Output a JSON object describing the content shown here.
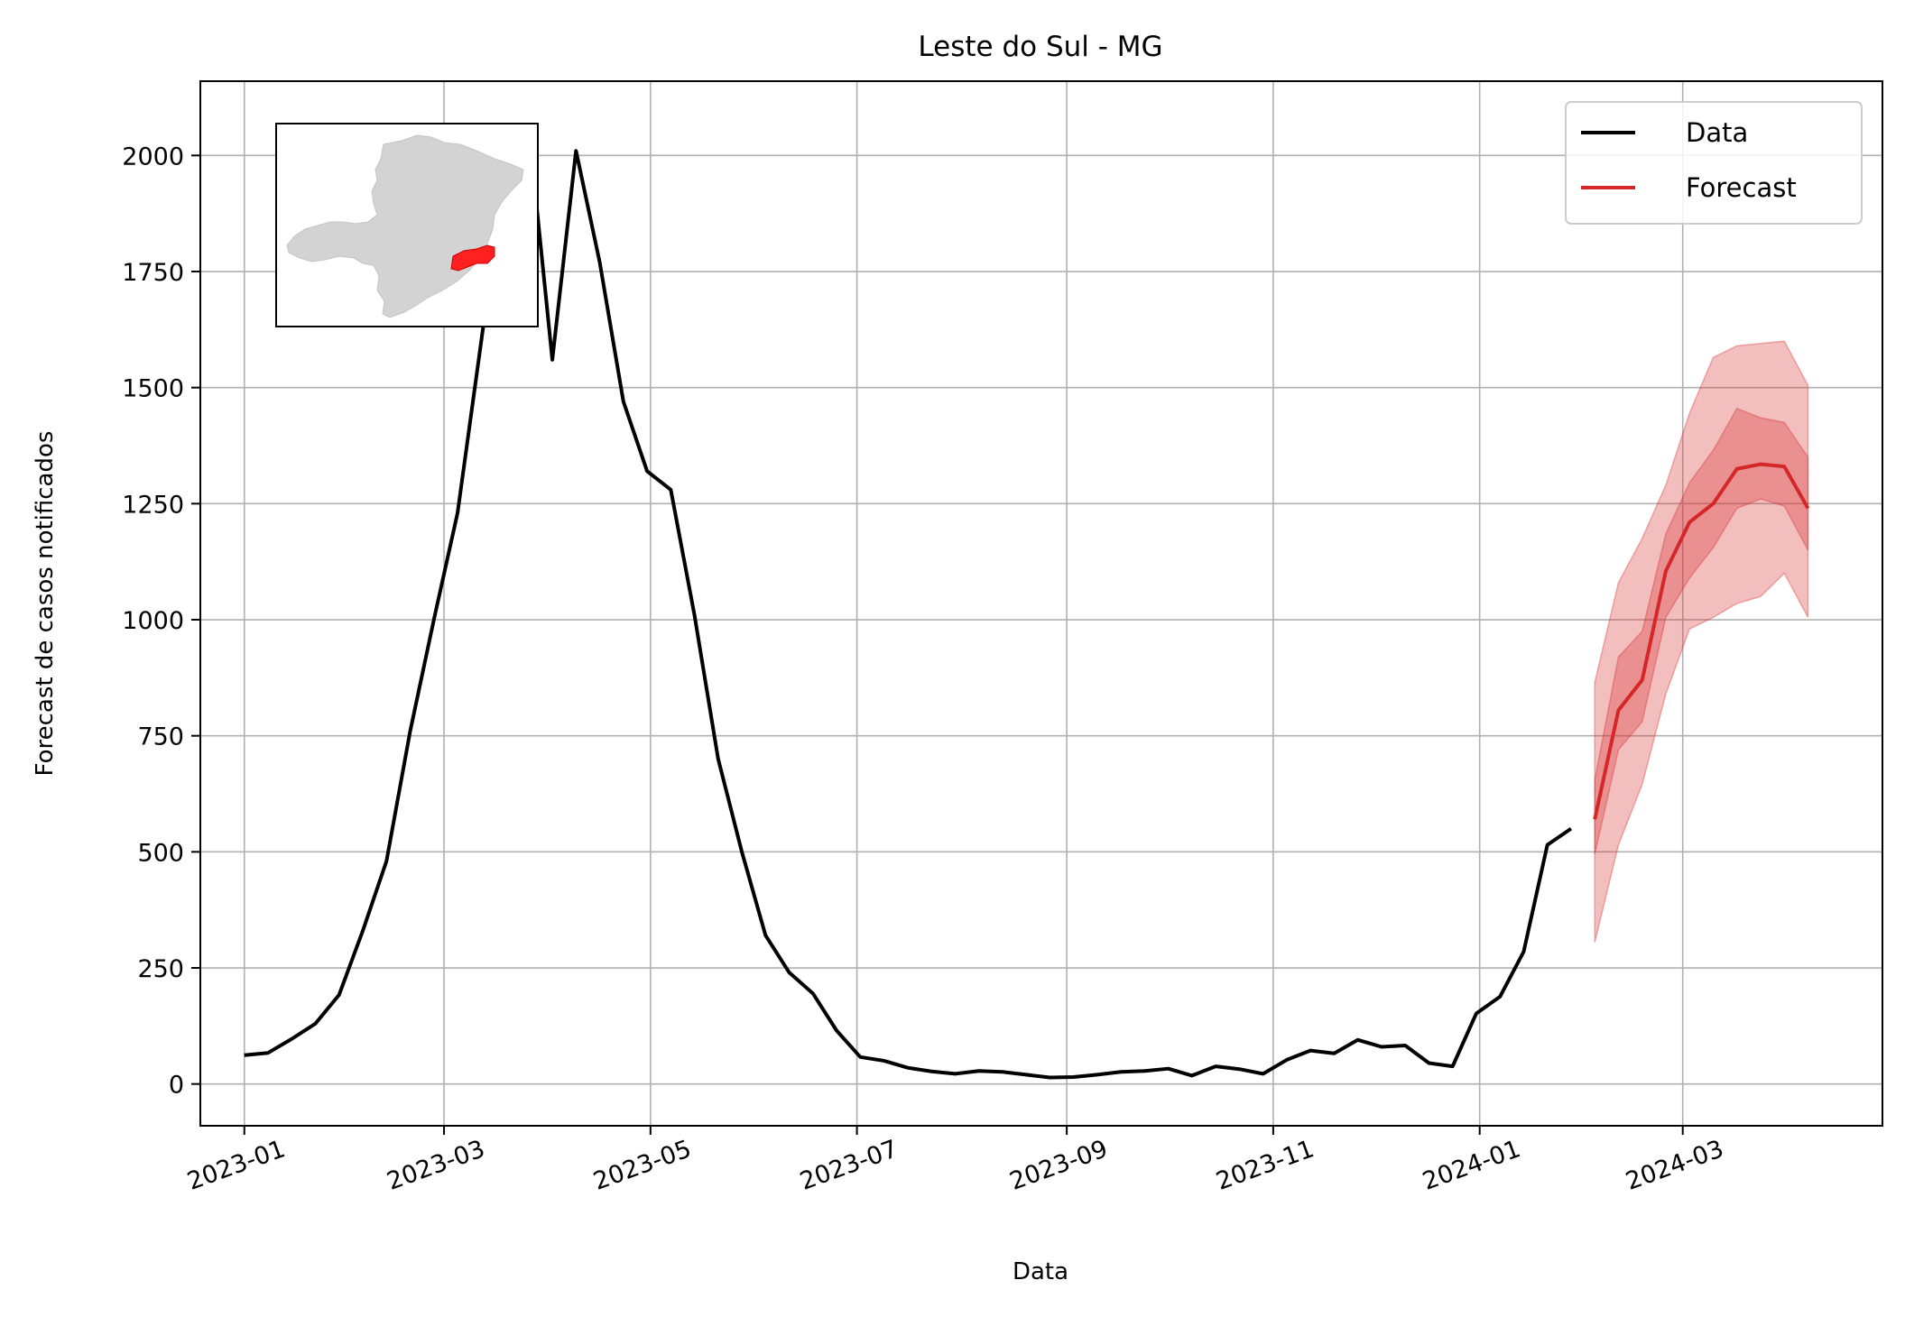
{
  "chart_data": {
    "type": "line",
    "title": "Leste do Sul - MG",
    "xlabel": "Data",
    "ylabel": "Forecast de casos notificados",
    "xlim": [
      "2022-12-19",
      "2024-04-29"
    ],
    "ylim": [
      -90,
      2160
    ],
    "x_ticks": [
      "2023-01-01",
      "2023-03-01",
      "2023-05-01",
      "2023-07-01",
      "2023-09-01",
      "2023-11-01",
      "2024-01-01",
      "2024-03-01"
    ],
    "x_tick_labels": [
      "2023-01",
      "2023-03",
      "2023-05",
      "2023-07",
      "2023-09",
      "2023-11",
      "2024-01",
      "2024-03"
    ],
    "y_ticks": [
      0,
      250,
      500,
      750,
      1000,
      1250,
      1500,
      1750,
      2000
    ],
    "y_tick_labels": [
      "0",
      "250",
      "500",
      "750",
      "1000",
      "1250",
      "1500",
      "1750",
      "2000"
    ],
    "grid": true,
    "legend": {
      "position": "top-right",
      "entries": [
        "Data",
        "Forecast"
      ]
    },
    "inset": {
      "description": "Mapa de MG com a região Leste do Sul em destaque"
    },
    "series": [
      {
        "name": "Data",
        "color": "#000000",
        "x": [
          "2023-01-01",
          "2023-01-08",
          "2023-01-15",
          "2023-01-22",
          "2023-01-29",
          "2023-02-05",
          "2023-02-12",
          "2023-02-19",
          "2023-02-26",
          "2023-03-05",
          "2023-03-12",
          "2023-03-19",
          "2023-03-26",
          "2023-04-02",
          "2023-04-09",
          "2023-04-16",
          "2023-04-23",
          "2023-04-30",
          "2023-05-07",
          "2023-05-14",
          "2023-05-21",
          "2023-05-28",
          "2023-06-04",
          "2023-06-11",
          "2023-06-18",
          "2023-06-25",
          "2023-07-02",
          "2023-07-09",
          "2023-07-16",
          "2023-07-23",
          "2023-07-30",
          "2023-08-06",
          "2023-08-13",
          "2023-08-20",
          "2023-08-27",
          "2023-09-03",
          "2023-09-10",
          "2023-09-17",
          "2023-09-24",
          "2023-10-01",
          "2023-10-08",
          "2023-10-15",
          "2023-10-22",
          "2023-10-29",
          "2023-11-05",
          "2023-11-12",
          "2023-11-19",
          "2023-11-26",
          "2023-12-03",
          "2023-12-10",
          "2023-12-17",
          "2023-12-24",
          "2023-12-31",
          "2024-01-07",
          "2024-01-14",
          "2024-01-21",
          "2024-01-28"
        ],
        "values": [
          62,
          67,
          97,
          130,
          192,
          330,
          480,
          760,
          1000,
          1230,
          1600,
          1980,
          2060,
          1560,
          2010,
          1770,
          1470,
          1320,
          1280,
          1010,
          700,
          500,
          320,
          240,
          195,
          115,
          58,
          50,
          35,
          27,
          22,
          28,
          26,
          20,
          14,
          15,
          20,
          26,
          28,
          33,
          18,
          38,
          32,
          22,
          52,
          72,
          66,
          95,
          80,
          83,
          45,
          38,
          152,
          188,
          285,
          515,
          550
        ]
      },
      {
        "name": "Forecast",
        "color": "#d62728",
        "x": [
          "2024-02-04",
          "2024-02-11",
          "2024-02-18",
          "2024-02-25",
          "2024-03-03",
          "2024-03-10",
          "2024-03-17",
          "2024-03-24",
          "2024-03-31",
          "2024-04-07"
        ],
        "values": [
          570,
          805,
          870,
          1105,
          1210,
          1250,
          1325,
          1335,
          1330,
          1240
        ],
        "inner_band_lower": [
          495,
          720,
          780,
          1005,
          1090,
          1155,
          1240,
          1260,
          1245,
          1150
        ],
        "inner_band_upper": [
          655,
          920,
          975,
          1185,
          1295,
          1365,
          1455,
          1435,
          1425,
          1350
        ],
        "outer_band_lower": [
          305,
          515,
          645,
          840,
          980,
          1005,
          1035,
          1050,
          1100,
          1005
        ],
        "outer_band_upper": [
          865,
          1080,
          1175,
          1290,
          1445,
          1565,
          1590,
          1595,
          1600,
          1505
        ]
      }
    ]
  }
}
